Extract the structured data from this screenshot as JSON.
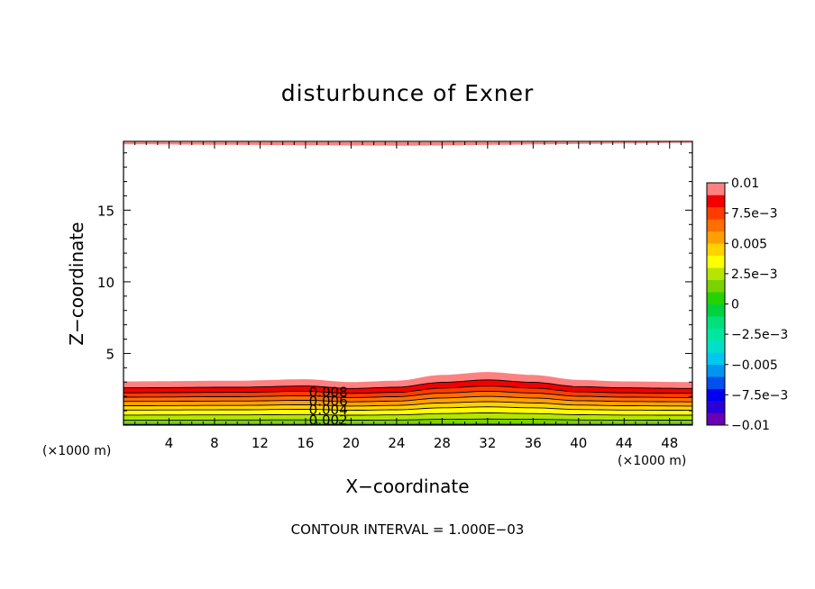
{
  "chart_data": {
    "type": "contour",
    "title": "disturbunce of Exner",
    "xlabel": "X−coordinate",
    "ylabel": "Z−coordinate",
    "x_scale_note_left": "(×1000 m)",
    "x_scale_note_right": "(×1000 m)",
    "xlim": [
      0,
      50
    ],
    "ylim": [
      0,
      19.8
    ],
    "x_ticks": [
      4,
      8,
      12,
      16,
      20,
      24,
      28,
      32,
      36,
      40,
      44,
      48
    ],
    "x_tick_labels": [
      "4",
      "8",
      "12",
      "16",
      "20",
      "24",
      "28",
      "32",
      "36",
      "40",
      "44",
      "48"
    ],
    "y_ticks": [
      5,
      10,
      15
    ],
    "y_tick_labels": [
      "5",
      "10",
      "15"
    ],
    "footer": "CONTOUR INTERVAL = 1.000E−03",
    "contour_interval": 0.001,
    "contour_labels": [
      "0.008",
      "0.006",
      "0.004",
      "0.002"
    ],
    "contour_label_values": [
      0.008,
      0.006,
      0.004,
      0.002
    ],
    "contour_label_x": 18,
    "colorbar": {
      "min": -0.01,
      "max": 0.01,
      "tick_labels": [
        "0.01",
        "7.5e−3",
        "0.005",
        "2.5e−3",
        "0",
        "−2.5e−3",
        "−0.005",
        "−7.5e−3",
        "−0.01"
      ],
      "colors": [
        "#6a00b4",
        "#2a00d8",
        "#0000f0",
        "#0050f0",
        "#0096f0",
        "#00c8f0",
        "#00e0c8",
        "#00e6a0",
        "#00e07a",
        "#00d23c",
        "#28d200",
        "#7ad200",
        "#b4e600",
        "#ffff00",
        "#ffd200",
        "#ffa000",
        "#ff6e00",
        "#ff3c00",
        "#f00000",
        "#ff8080"
      ]
    },
    "top_band": {
      "value": 0.01,
      "z_bottom_at_x0": 19.6,
      "z_bottom_at_x25": 19.5,
      "z_bottom_at_x50": 19.7
    },
    "profile_x": [
      0,
      10,
      16,
      20,
      24,
      28,
      32,
      36,
      40,
      44,
      50
    ],
    "profile_bump": [
      0.0,
      0.05,
      0.15,
      -0.05,
      0.05,
      0.45,
      0.65,
      0.45,
      0.1,
      0.0,
      -0.05
    ],
    "layers": [
      {
        "value": 0.002,
        "z_top": 0.35,
        "color": "#7ad200"
      },
      {
        "value": 0.003,
        "z_top": 0.7,
        "color": "#b4e600"
      },
      {
        "value": 0.004,
        "z_top": 1.05,
        "color": "#ffff00"
      },
      {
        "value": 0.005,
        "z_top": 1.35,
        "color": "#ffd200"
      },
      {
        "value": 0.006,
        "z_top": 1.65,
        "color": "#ffa000"
      },
      {
        "value": 0.007,
        "z_top": 1.95,
        "color": "#ff6e00"
      },
      {
        "value": 0.008,
        "z_top": 2.25,
        "color": "#ff3c00"
      },
      {
        "value": 0.009,
        "z_top": 2.6,
        "color": "#f00000"
      },
      {
        "value": 0.01,
        "z_top": 3.05,
        "color": "#ff8080"
      }
    ],
    "base_layer": {
      "value": 0.001,
      "color": "#28d200"
    }
  }
}
